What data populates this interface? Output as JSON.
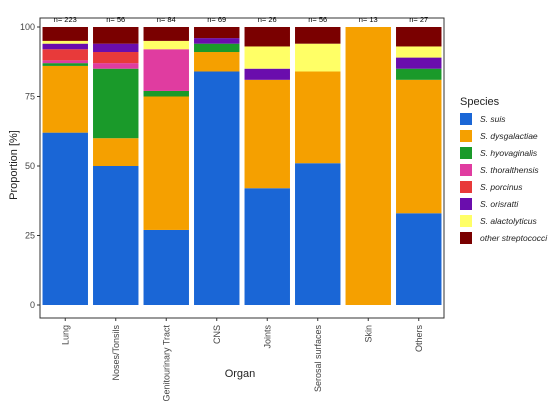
{
  "chart_data": {
    "type": "bar",
    "stacked": true,
    "xlabel": "Organ",
    "ylabel": "Proportion [%]",
    "ylim": [
      0,
      100
    ],
    "yticks": [
      0,
      25,
      50,
      75,
      100
    ],
    "categories": [
      "Lung",
      "Noses/Tonsils",
      "Genitourinary Tract",
      "CNS",
      "Joints",
      "Serosal surfaces",
      "Skin",
      "Others"
    ],
    "n_labels": [
      "n= 223",
      "n= 56",
      "n= 84",
      "n= 69",
      "n= 26",
      "n= 56",
      "n= 13",
      "n= 27"
    ],
    "legend": {
      "title": "Species",
      "position": "right"
    },
    "grid": false,
    "series": [
      {
        "name": "S. suis",
        "color": "#1a66d6",
        "values": [
          62,
          50,
          27,
          84,
          42,
          51,
          0,
          33
        ]
      },
      {
        "name": "S. dysgalactiae",
        "color": "#f5a000",
        "values": [
          24,
          10,
          48,
          7,
          39,
          33,
          100,
          48
        ]
      },
      {
        "name": "S. hyovaginalis",
        "color": "#1a9a2a",
        "values": [
          1,
          25,
          2,
          3,
          0,
          0,
          0,
          4
        ]
      },
      {
        "name": "S. thoralthensis",
        "color": "#e03ca0",
        "values": [
          1,
          2,
          15,
          0,
          0,
          0,
          0,
          0
        ]
      },
      {
        "name": "S. porcinus",
        "color": "#e83a3a",
        "values": [
          4,
          4,
          0,
          0,
          0,
          0,
          0,
          0
        ]
      },
      {
        "name": "S. orisratti",
        "color": "#6a0dad",
        "values": [
          2,
          3,
          0,
          2,
          4,
          0,
          0,
          4
        ]
      },
      {
        "name": "S. alactolyticus",
        "color": "#ffff66",
        "values": [
          1,
          0,
          3,
          0,
          8,
          10,
          0,
          4
        ]
      },
      {
        "name": "other streptococci",
        "color": "#7a0000",
        "values": [
          5,
          6,
          5,
          4,
          7,
          6,
          0,
          7
        ]
      }
    ]
  }
}
